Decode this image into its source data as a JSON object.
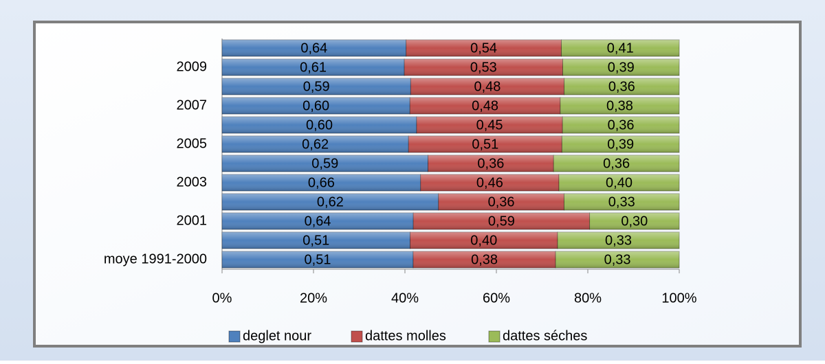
{
  "chart_data": {
    "type": "bar",
    "orientation": "horizontal",
    "stacking": "percent",
    "categories": [
      "moye 1991-2000",
      null,
      "2001",
      null,
      "2003",
      null,
      "2005",
      null,
      "2007",
      null,
      "2009",
      null
    ],
    "series": [
      {
        "name": "deglet nour",
        "color": "#4f81bd",
        "values": [
          0.51,
          0.51,
          0.64,
          0.62,
          0.66,
          0.59,
          0.62,
          0.6,
          0.6,
          0.59,
          0.61,
          0.64
        ],
        "value_labels": [
          "0,51",
          "0,51",
          "0,64",
          "0,62",
          "0,66",
          "0,59",
          "0,62",
          "0,60",
          "0,60",
          "0,59",
          "0,61",
          "0,64"
        ]
      },
      {
        "name": "dattes molles",
        "color": "#c0504d",
        "values": [
          0.38,
          0.4,
          0.59,
          0.36,
          0.46,
          0.36,
          0.51,
          0.45,
          0.48,
          0.48,
          0.53,
          0.54
        ],
        "value_labels": [
          "0,38",
          "0,40",
          "0,59",
          "0,36",
          "0,46",
          "0,36",
          "0,51",
          "0,45",
          "0,48",
          "0,48",
          "0,53",
          "0,54"
        ]
      },
      {
        "name": "dattes séches",
        "color": "#9bbb59",
        "values": [
          0.33,
          0.33,
          0.3,
          0.33,
          0.4,
          0.36,
          0.39,
          0.36,
          0.38,
          0.36,
          0.39,
          0.41
        ],
        "value_labels": [
          "0,33",
          "0,33",
          "0,30",
          "0,33",
          "0,40",
          "0,36",
          "0,39",
          "0,36",
          "0,38",
          "0,36",
          "0,39",
          "0,41"
        ]
      }
    ],
    "xlim": [
      0,
      100
    ],
    "xticks": [
      {
        "value": 0,
        "label": "0%"
      },
      {
        "value": 20,
        "label": "20%"
      },
      {
        "value": 40,
        "label": "40%"
      },
      {
        "value": 60,
        "label": "60%"
      },
      {
        "value": 80,
        "label": "80%"
      },
      {
        "value": 100,
        "label": "100%"
      }
    ],
    "legend": "bottom"
  }
}
